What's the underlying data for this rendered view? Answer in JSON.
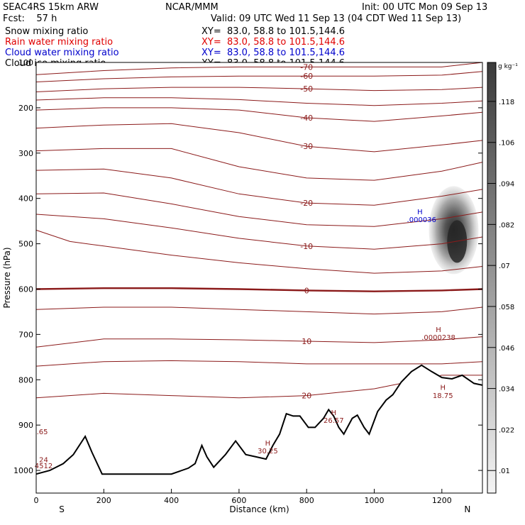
{
  "header": {
    "model": "SEAC4RS 15km ARW",
    "center": "NCAR/MMM",
    "init": "Init: 00 UTC Mon 09 Sep 13",
    "fcst": "Fcst:    57 h",
    "valid": "Valid: 09 UTC Wed 11 Sep 13 (04 CDT Wed 11 Sep 13)"
  },
  "fields": [
    {
      "label": "Snow mixing ratio",
      "xy": "XY=  83.0, 58.8 to 101.5,144.6",
      "color": "#000000"
    },
    {
      "label": "Rain water mixing ratio",
      "xy": "XY=  83.0, 58.8 to 101.5,144.6",
      "color": "#e00000"
    },
    {
      "label": "Cloud water mixing ratio",
      "xy": "XY=  83.0, 58.8 to 101.5,144.6",
      "color": "#0000cc"
    },
    {
      "label": "Cloud ice mixing ratio",
      "xy": "XY=  83.0, 58.8 to 101.5,144.6",
      "color": "#000000"
    }
  ],
  "chart_data": {
    "type": "cross-section",
    "xlabel": "Distance (km)",
    "ylabel": "Pressure (hPa)",
    "xlim": [
      0,
      1320
    ],
    "ylim": [
      1050,
      100
    ],
    "xticks": [
      0,
      200,
      400,
      600,
      800,
      1000,
      1200
    ],
    "yticks": [
      100,
      200,
      300,
      400,
      500,
      600,
      700,
      800,
      900,
      1000
    ],
    "x_end_labels": {
      "left": "S",
      "right": "N"
    },
    "colorbar": {
      "unit": "g kg⁻¹",
      "ticks": [
        ".01",
        ".022",
        ".034",
        ".046",
        ".058",
        ".07",
        ".082",
        ".094",
        ".106",
        ".118"
      ]
    },
    "isotherms": [
      {
        "label": "-70",
        "points": [
          [
            0,
            127
          ],
          [
            200,
            118
          ],
          [
            400,
            112
          ],
          [
            600,
            110
          ],
          [
            800,
            110
          ],
          [
            1000,
            110
          ],
          [
            1200,
            110
          ],
          [
            1320,
            100
          ]
        ]
      },
      {
        "label": "-60",
        "points": [
          [
            0,
            143
          ],
          [
            200,
            136
          ],
          [
            400,
            132
          ],
          [
            600,
            130
          ],
          [
            800,
            130
          ],
          [
            1000,
            130
          ],
          [
            1200,
            128
          ],
          [
            1320,
            120
          ]
        ]
      },
      {
        "label": "-50",
        "points": [
          [
            0,
            165
          ],
          [
            200,
            158
          ],
          [
            400,
            155
          ],
          [
            600,
            155
          ],
          [
            800,
            158
          ],
          [
            1000,
            162
          ],
          [
            1200,
            160
          ],
          [
            1320,
            155
          ]
        ]
      },
      {
        "label": "",
        "points": [
          [
            0,
            183
          ],
          [
            200,
            178
          ],
          [
            400,
            178
          ],
          [
            600,
            182
          ],
          [
            800,
            190
          ],
          [
            1000,
            195
          ],
          [
            1200,
            190
          ],
          [
            1320,
            185
          ]
        ]
      },
      {
        "label": "-40",
        "points": [
          [
            0,
            205
          ],
          [
            200,
            200
          ],
          [
            400,
            200
          ],
          [
            600,
            205
          ],
          [
            800,
            222
          ],
          [
            1000,
            230
          ],
          [
            1200,
            218
          ],
          [
            1320,
            210
          ]
        ]
      },
      {
        "label": "-30",
        "points": [
          [
            0,
            245
          ],
          [
            200,
            238
          ],
          [
            400,
            235
          ],
          [
            600,
            255
          ],
          [
            800,
            285
          ],
          [
            1000,
            297
          ],
          [
            1200,
            282
          ],
          [
            1320,
            272
          ]
        ]
      },
      {
        "label": "",
        "points": [
          [
            0,
            295
          ],
          [
            200,
            290
          ],
          [
            400,
            290
          ],
          [
            600,
            330
          ],
          [
            800,
            355
          ],
          [
            1000,
            360
          ],
          [
            1200,
            340
          ],
          [
            1320,
            320
          ]
        ]
      },
      {
        "label": "-20",
        "points": [
          [
            0,
            338
          ],
          [
            200,
            335
          ],
          [
            400,
            355
          ],
          [
            600,
            390
          ],
          [
            800,
            410
          ],
          [
            1000,
            415
          ],
          [
            1200,
            395
          ],
          [
            1320,
            380
          ]
        ]
      },
      {
        "label": "",
        "points": [
          [
            0,
            390
          ],
          [
            200,
            388
          ],
          [
            400,
            412
          ],
          [
            600,
            440
          ],
          [
            800,
            458
          ],
          [
            1000,
            462
          ],
          [
            1200,
            445
          ],
          [
            1320,
            430
          ]
        ]
      },
      {
        "label": "-10",
        "points": [
          [
            0,
            435
          ],
          [
            200,
            445
          ],
          [
            400,
            465
          ],
          [
            600,
            488
          ],
          [
            800,
            505
          ],
          [
            1000,
            512
          ],
          [
            1200,
            500
          ],
          [
            1320,
            485
          ]
        ]
      },
      {
        "label": "",
        "points": [
          [
            0,
            470
          ],
          [
            100,
            495
          ],
          [
            200,
            505
          ],
          [
            400,
            525
          ],
          [
            600,
            542
          ],
          [
            800,
            555
          ],
          [
            1000,
            565
          ],
          [
            1200,
            560
          ],
          [
            1320,
            550
          ]
        ]
      },
      {
        "label": "0",
        "bold": true,
        "points": [
          [
            0,
            600
          ],
          [
            200,
            598
          ],
          [
            400,
            598
          ],
          [
            600,
            600
          ],
          [
            800,
            603
          ],
          [
            1000,
            605
          ],
          [
            1200,
            603
          ],
          [
            1320,
            600
          ]
        ]
      },
      {
        "label": "",
        "points": [
          [
            0,
            645
          ],
          [
            200,
            640
          ],
          [
            400,
            640
          ],
          [
            600,
            645
          ],
          [
            800,
            650
          ],
          [
            1000,
            655
          ],
          [
            1200,
            650
          ],
          [
            1320,
            640
          ]
        ]
      },
      {
        "label": "10",
        "points": [
          [
            0,
            728
          ],
          [
            200,
            710
          ],
          [
            400,
            710
          ],
          [
            600,
            712
          ],
          [
            800,
            715
          ],
          [
            1000,
            718
          ],
          [
            1200,
            712
          ],
          [
            1320,
            705
          ]
        ]
      },
      {
        "label": "",
        "points": [
          [
            0,
            770
          ],
          [
            200,
            760
          ],
          [
            400,
            758
          ],
          [
            600,
            760
          ],
          [
            800,
            765
          ],
          [
            1000,
            765
          ],
          [
            1200,
            765
          ],
          [
            1320,
            760
          ]
        ]
      },
      {
        "label": "20",
        "points": [
          [
            0,
            840
          ],
          [
            200,
            830
          ],
          [
            400,
            835
          ],
          [
            600,
            840
          ],
          [
            800,
            835
          ],
          [
            1000,
            820
          ],
          [
            1200,
            790
          ],
          [
            1320,
            790
          ]
        ]
      }
    ],
    "maxima_labels": [
      {
        "text": "H",
        "x": 1190,
        "p": 695
      },
      {
        "text": ".0000238",
        "x": 1190,
        "p": 712
      },
      {
        "text": "H",
        "x": 1203,
        "p": 822
      },
      {
        "text": "18.75",
        "x": 1203,
        "p": 840
      },
      {
        "text": "H",
        "x": 880,
        "p": 878
      },
      {
        "text": "26.57",
        "x": 880,
        "p": 895
      },
      {
        "text": "H",
        "x": 685,
        "p": 945
      },
      {
        "text": "30.25",
        "x": 685,
        "p": 962
      },
      {
        "text": ".65",
        "x": 18,
        "p": 920
      },
      {
        "text": "24",
        "x": 22,
        "p": 982
      },
      {
        "text": "4512",
        "x": 22,
        "p": 995
      }
    ],
    "cloud_water_labels": [
      {
        "text": "H",
        "x": 1135,
        "p": 435
      },
      {
        "text": ".000036",
        "x": 1140,
        "p": 452
      }
    ],
    "terrain": [
      [
        0,
        1008
      ],
      [
        40,
        1000
      ],
      [
        80,
        985
      ],
      [
        110,
        965
      ],
      [
        145,
        925
      ],
      [
        165,
        960
      ],
      [
        195,
        1008
      ],
      [
        300,
        1008
      ],
      [
        400,
        1008
      ],
      [
        450,
        995
      ],
      [
        470,
        985
      ],
      [
        490,
        945
      ],
      [
        505,
        970
      ],
      [
        525,
        993
      ],
      [
        560,
        965
      ],
      [
        590,
        935
      ],
      [
        620,
        965
      ],
      [
        650,
        970
      ],
      [
        680,
        975
      ],
      [
        700,
        945
      ],
      [
        720,
        920
      ],
      [
        740,
        875
      ],
      [
        760,
        880
      ],
      [
        780,
        880
      ],
      [
        805,
        905
      ],
      [
        825,
        905
      ],
      [
        850,
        885
      ],
      [
        865,
        866
      ],
      [
        880,
        880
      ],
      [
        895,
        905
      ],
      [
        910,
        920
      ],
      [
        935,
        885
      ],
      [
        950,
        878
      ],
      [
        970,
        905
      ],
      [
        985,
        920
      ],
      [
        1010,
        870
      ],
      [
        1035,
        845
      ],
      [
        1055,
        833
      ],
      [
        1080,
        805
      ],
      [
        1110,
        782
      ],
      [
        1140,
        768
      ],
      [
        1170,
        782
      ],
      [
        1200,
        795
      ],
      [
        1230,
        798
      ],
      [
        1260,
        790
      ],
      [
        1295,
        808
      ],
      [
        1320,
        812
      ]
    ]
  }
}
